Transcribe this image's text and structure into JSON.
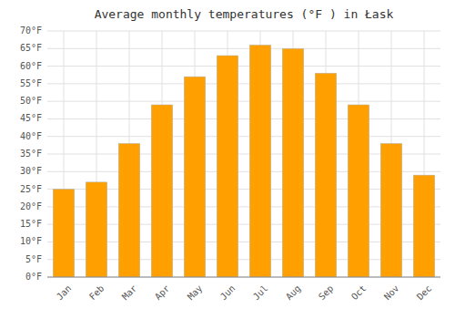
{
  "chart_data": {
    "type": "bar",
    "title": "Average monthly temperatures (°F ) in Łask",
    "categories": [
      "Jan",
      "Feb",
      "Mar",
      "Apr",
      "May",
      "Jun",
      "Jul",
      "Aug",
      "Sep",
      "Oct",
      "Nov",
      "Dec"
    ],
    "values": [
      25,
      27,
      38,
      49,
      57,
      63,
      66,
      65,
      58,
      49,
      38,
      29
    ],
    "color": "#FFA000",
    "ylim": [
      0,
      70
    ],
    "yticks": [
      {
        "value": 0,
        "label": "0°F"
      },
      {
        "value": 5,
        "label": "5°F"
      },
      {
        "value": 10,
        "label": "10°F"
      },
      {
        "value": 15,
        "label": "15°F"
      },
      {
        "value": 20,
        "label": "20°F"
      },
      {
        "value": 25,
        "label": "25°F"
      },
      {
        "value": 30,
        "label": "30°F"
      },
      {
        "value": 35,
        "label": "35°F"
      },
      {
        "value": 40,
        "label": "40°F"
      },
      {
        "value": 45,
        "label": "45°F"
      },
      {
        "value": 50,
        "label": "50°F"
      },
      {
        "value": 55,
        "label": "55°F"
      },
      {
        "value": 60,
        "label": "60°F"
      },
      {
        "value": 65,
        "label": "65°F"
      },
      {
        "value": 70,
        "label": "70°F"
      }
    ],
    "grid": true
  }
}
